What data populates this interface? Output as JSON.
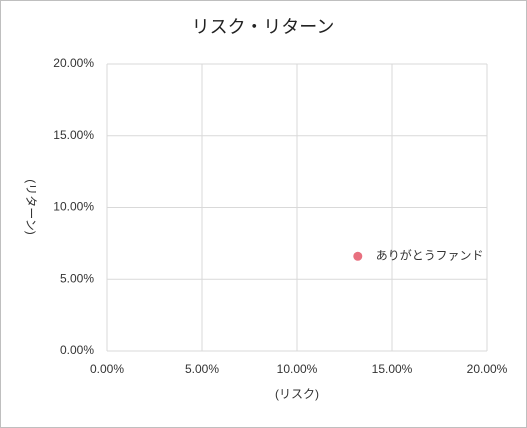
{
  "chart_data": {
    "type": "scatter",
    "title": "リスク・リターン",
    "x_label": "(リスク)",
    "y_label": "(リターン)",
    "series": [
      {
        "name": "ありがとうファンド",
        "color": "#e8707f",
        "x": [
          13.2
        ],
        "values": [
          6.6
        ]
      }
    ],
    "xlim": [
      0,
      20
    ],
    "ylim": [
      0,
      20
    ],
    "xticks": [
      {
        "value": 0,
        "label": "0.00%"
      },
      {
        "value": 5,
        "label": "5.00%"
      },
      {
        "value": 10,
        "label": "10.00%"
      },
      {
        "value": 15,
        "label": "15.00%"
      },
      {
        "value": 20,
        "label": "20.00%"
      }
    ],
    "yticks": [
      {
        "value": 0,
        "label": "0.00%"
      },
      {
        "value": 5,
        "label": "5.00%"
      },
      {
        "value": 10,
        "label": "10.00%"
      },
      {
        "value": 15,
        "label": "15.00%"
      },
      {
        "value": 20,
        "label": "20.00%"
      }
    ],
    "grid": true
  }
}
